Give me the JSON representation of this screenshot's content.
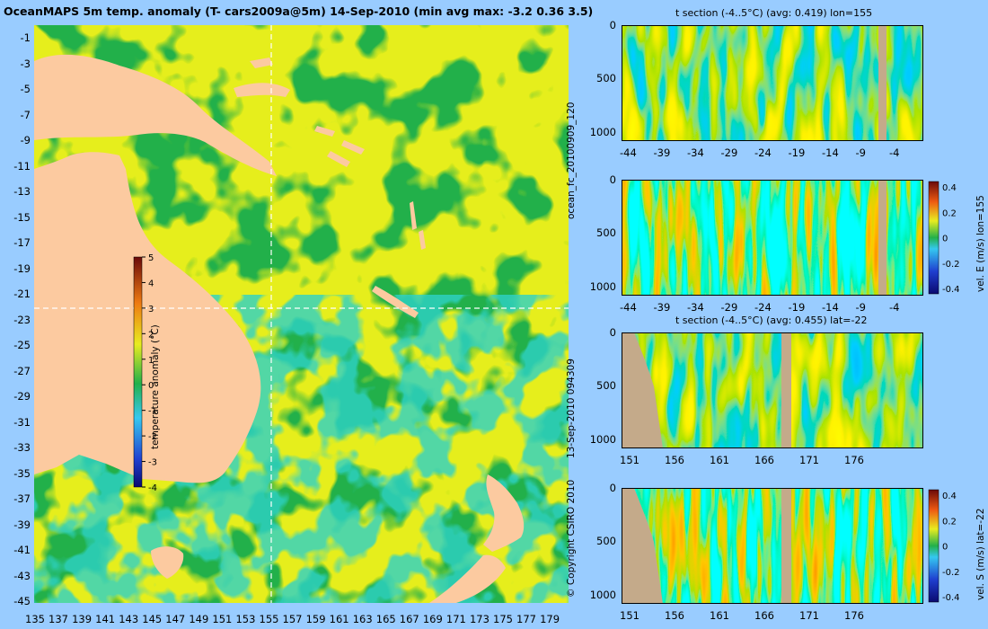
{
  "map": {
    "title": "OceanMAPS 5m temp. anomaly (T- cars2009a@5m) 14-Sep-2010 (min avg max: -3.2 0.36 3.5)",
    "lat_labels": [
      "-1",
      "-3",
      "-5",
      "-7",
      "-9",
      "-11",
      "-13",
      "-15",
      "-17",
      "-19",
      "-21",
      "-23",
      "-25",
      "-27",
      "-29",
      "-31",
      "-33",
      "-35",
      "-37",
      "-39",
      "-41",
      "-43",
      "-45"
    ],
    "lon_labels": [
      "135",
      "137",
      "139",
      "141",
      "143",
      "145",
      "147",
      "149",
      "151",
      "153",
      "155",
      "157",
      "159",
      "161",
      "163",
      "165",
      "167",
      "169",
      "171",
      "173",
      "175",
      "177",
      "179"
    ],
    "crosshair": {
      "lon": 155,
      "lat": -22
    },
    "colorbar": {
      "label": "temperature anomaly (°C)",
      "ticks": [
        "5",
        "4",
        "3",
        "2",
        "1",
        "0",
        "-1",
        "-2",
        "-3",
        "-4"
      ],
      "range": [
        -4,
        5
      ]
    },
    "colors": {
      "ocean": "#22b04a",
      "land": "#fccaa0",
      "background": "#99ccff"
    }
  },
  "side_text": {
    "run_left": "ocean_fc_20100909_120",
    "run_right": "13-Sep-2010 094309",
    "copyright": "© Copyright CSIRO 2010"
  },
  "sections": [
    {
      "title": "t section (-4..5°C) (avg: 0.419) lon=155",
      "depth_ticks": [
        "0",
        "500",
        "1000"
      ],
      "x_ticks": [
        "-44",
        "-39",
        "-34",
        "-29",
        "-24",
        "-19",
        "-14",
        "-9",
        "-4"
      ],
      "colorbar": null
    },
    {
      "title": "",
      "depth_ticks": [
        "0",
        "500",
        "1000"
      ],
      "x_ticks": [
        "-44",
        "-39",
        "-34",
        "-29",
        "-24",
        "-19",
        "-14",
        "-9",
        "-4"
      ],
      "colorbar": {
        "label": "vel. E (m/s) lon=155",
        "ticks": [
          "0.4",
          "0.2",
          "0",
          "-0.2",
          "-0.4"
        ]
      }
    },
    {
      "title": "t section (-4..5°C) (avg: 0.455) lat=-22",
      "depth_ticks": [
        "0",
        "500",
        "1000"
      ],
      "x_ticks": [
        "151",
        "156",
        "161",
        "166",
        "171",
        "176"
      ],
      "colorbar": null
    },
    {
      "title": "",
      "depth_ticks": [
        "0",
        "500",
        "1000"
      ],
      "x_ticks": [
        "151",
        "156",
        "161",
        "166",
        "171",
        "176"
      ],
      "colorbar": {
        "label": "vel. S (m/s) lat=-22",
        "ticks": [
          "0.4",
          "0.2",
          "0",
          "-0.2",
          "-0.4"
        ]
      }
    }
  ]
}
